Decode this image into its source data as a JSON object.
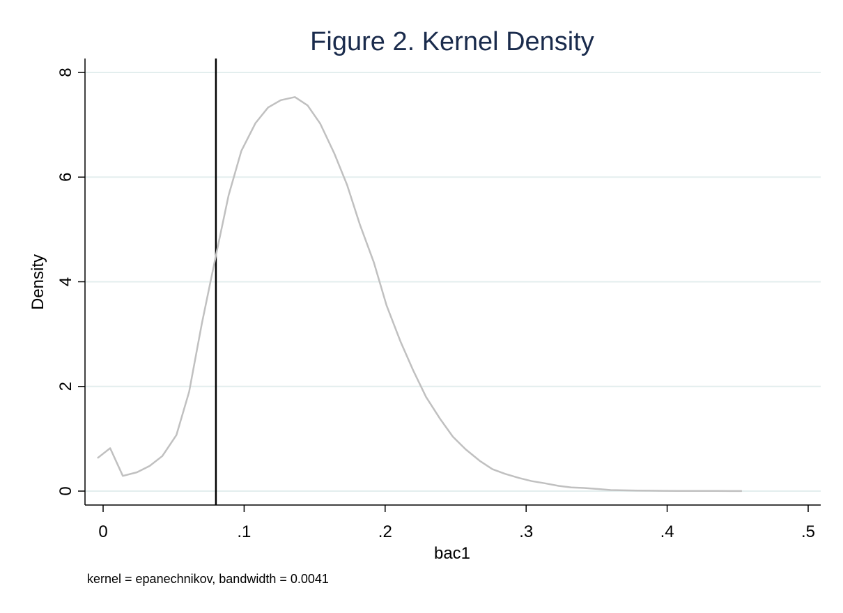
{
  "chart_data": {
    "type": "line",
    "title": "Figure 2. Kernel Density",
    "xlabel": "bac1",
    "ylabel": "Density",
    "note": "kernel = epanechnikov, bandwidth = 0.0041",
    "xlim": [
      -0.013,
      0.508
    ],
    "ylim": [
      0,
      8
    ],
    "x_ticks": [
      0,
      0.1,
      0.2,
      0.3,
      0.4,
      0.5
    ],
    "x_tick_labels": [
      "0",
      ".1",
      ".2",
      ".3",
      ".4",
      ".5"
    ],
    "y_ticks": [
      0,
      2,
      4,
      6,
      8
    ],
    "y_tick_labels": [
      "0",
      "2",
      "4",
      "6",
      "8"
    ],
    "grid": true,
    "reference_line": {
      "x": 0.08
    },
    "colors": {
      "curve": "#c0c0c0",
      "grid": "#e3eeee",
      "reference": "#000000",
      "title": "#1a2b4c"
    },
    "series": [
      {
        "x": [
          -0.004,
          0.005,
          0.014,
          0.024,
          0.033,
          0.042,
          0.052,
          0.061,
          0.07,
          0.08,
          0.089,
          0.098,
          0.108,
          0.117,
          0.126,
          0.136,
          0.145,
          0.154,
          0.164,
          0.173,
          0.182,
          0.192,
          0.201,
          0.211,
          0.22,
          0.229,
          0.239,
          0.248,
          0.257,
          0.267,
          0.276,
          0.285,
          0.295,
          0.304,
          0.313,
          0.323,
          0.332,
          0.341,
          0.351,
          0.36,
          0.369,
          0.379,
          0.388,
          0.397,
          0.407,
          0.416,
          0.425,
          0.435,
          0.444,
          0.453
        ],
        "values": [
          0.63,
          0.82,
          0.29,
          0.36,
          0.48,
          0.67,
          1.07,
          1.9,
          3.2,
          4.5,
          5.65,
          6.5,
          7.03,
          7.33,
          7.47,
          7.53,
          7.37,
          7.02,
          6.45,
          5.85,
          5.1,
          4.37,
          3.55,
          2.85,
          2.3,
          1.8,
          1.38,
          1.04,
          0.8,
          0.58,
          0.42,
          0.33,
          0.25,
          0.19,
          0.15,
          0.1,
          0.07,
          0.06,
          0.04,
          0.02,
          0.015,
          0.01,
          0.008,
          0.005,
          0.004,
          0.003,
          0.002,
          0.002,
          0.001,
          0.001
        ]
      }
    ]
  }
}
